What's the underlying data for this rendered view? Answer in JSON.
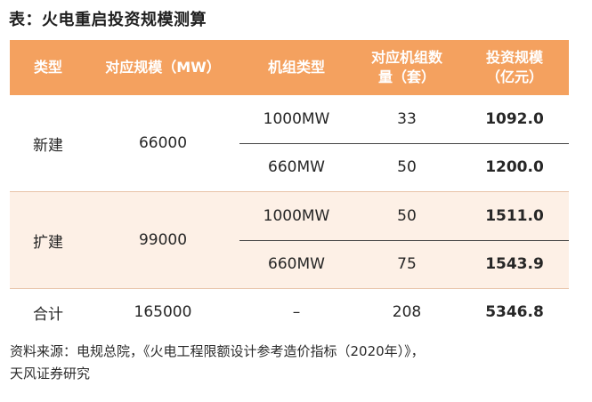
{
  "title": "表：火电重启投资规模测算",
  "headers": {
    "type": "类型",
    "scale": "对应规模（MW）",
    "unit_type": "机组类型",
    "unit_count_line1": "对应机组数",
    "unit_count_line2": "量（套）",
    "investment_line1": "投资规模",
    "investment_line2": "（亿元）"
  },
  "groups": [
    {
      "type": "新建",
      "scale": "66000",
      "rows": [
        {
          "unit_type": "1000MW",
          "count": "33",
          "investment": "1092.0"
        },
        {
          "unit_type": "660MW",
          "count": "50",
          "investment": "1200.0"
        }
      ]
    },
    {
      "type": "扩建",
      "scale": "99000",
      "rows": [
        {
          "unit_type": "1000MW",
          "count": "50",
          "investment": "1511.0"
        },
        {
          "unit_type": "660MW",
          "count": "75",
          "investment": "1543.9"
        }
      ]
    }
  ],
  "total": {
    "type": "合计",
    "scale": "165000",
    "unit_type": "–",
    "count": "208",
    "investment": "5346.8"
  },
  "source_line1": "资料来源：电规总院，《火电工程限额设计参考造价指标（2020年）》，",
  "source_line2": "天风证券研究",
  "colors": {
    "header_bg": "#f4a15f",
    "alt_row_bg": "#fdf0e6"
  }
}
